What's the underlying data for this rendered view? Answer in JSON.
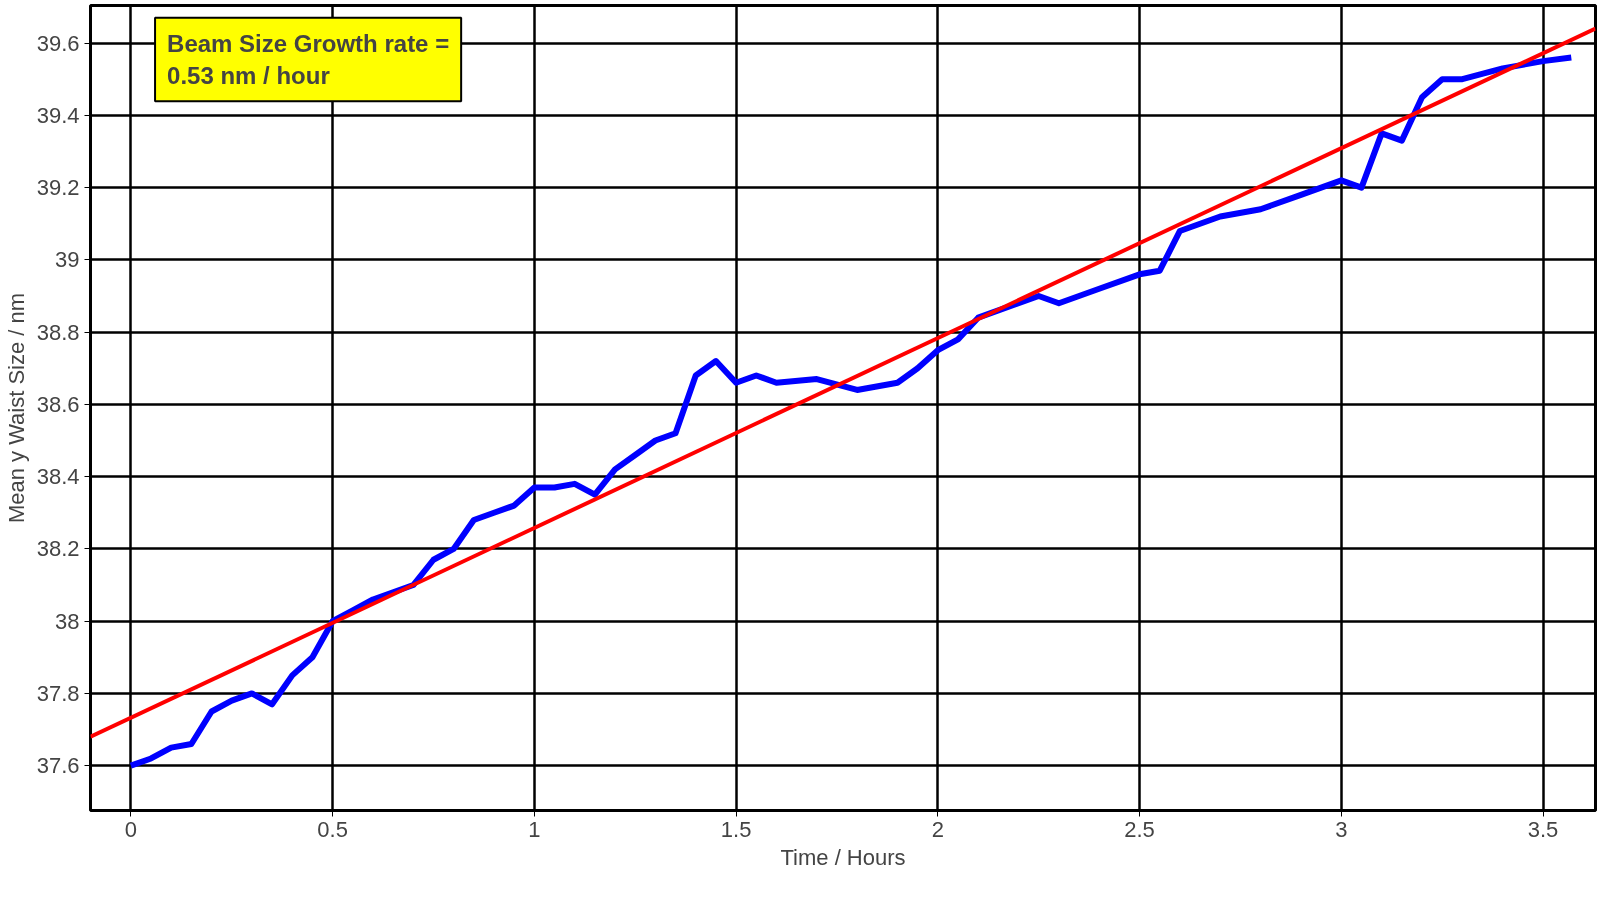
{
  "chart_data": {
    "type": "line",
    "xlabel": "Time / Hours",
    "ylabel": "Mean y Waist Size / nm",
    "annotations": [
      "Beam Size Growth rate =\n0.53 nm / hour"
    ],
    "xlim": [
      -0.1,
      3.63
    ],
    "ylim": [
      37.476,
      39.704
    ],
    "xticks": [
      0,
      0.5,
      1,
      1.5,
      2,
      2.5,
      3,
      3.5
    ],
    "yticks": [
      37.6,
      37.8,
      38,
      38.2,
      38.4,
      38.6,
      38.8,
      39,
      39.2,
      39.4,
      39.6
    ],
    "grid": true,
    "marker": "none",
    "line_style": "solid",
    "series": [
      {
        "color": "#0000ff",
        "x": [
          0,
          0.05,
          0.1,
          0.15,
          0.2,
          0.25,
          0.3,
          0.35,
          0.4,
          0.45,
          0.5,
          0.55,
          0.6,
          0.65,
          0.7,
          0.75,
          0.8,
          0.85,
          0.9,
          0.95,
          1.0,
          1.05,
          1.1,
          1.15,
          1.2,
          1.25,
          1.3,
          1.35,
          1.4,
          1.45,
          1.5,
          1.55,
          1.6,
          1.7,
          1.8,
          1.9,
          1.95,
          2.0,
          2.05,
          2.1,
          2.15,
          2.2,
          2.25,
          2.3,
          2.4,
          2.5,
          2.55,
          2.6,
          2.7,
          2.8,
          2.9,
          3.0,
          3.05,
          3.1,
          3.15,
          3.2,
          3.25,
          3.3,
          3.4,
          3.5,
          3.57
        ],
        "values": [
          37.6,
          37.62,
          37.65,
          37.66,
          37.75,
          37.78,
          37.8,
          37.77,
          37.85,
          37.9,
          38.0,
          38.03,
          38.06,
          38.08,
          38.1,
          38.17,
          38.2,
          38.28,
          38.3,
          38.32,
          38.37,
          38.37,
          38.38,
          38.35,
          38.42,
          38.46,
          38.5,
          38.52,
          38.68,
          38.72,
          38.66,
          38.68,
          38.66,
          38.67,
          38.64,
          38.66,
          38.7,
          38.75,
          38.78,
          38.84,
          38.86,
          38.88,
          38.9,
          38.88,
          38.92,
          38.96,
          38.97,
          39.08,
          39.12,
          39.14,
          39.18,
          39.22,
          39.2,
          39.35,
          39.33,
          39.45,
          39.5,
          39.5,
          39.53,
          39.55,
          39.56
        ]
      },
      {
        "color": "#ff0000",
        "type": "line",
        "x": [
          -0.1,
          3.63
        ],
        "values": [
          37.68,
          39.64
        ]
      }
    ]
  }
}
